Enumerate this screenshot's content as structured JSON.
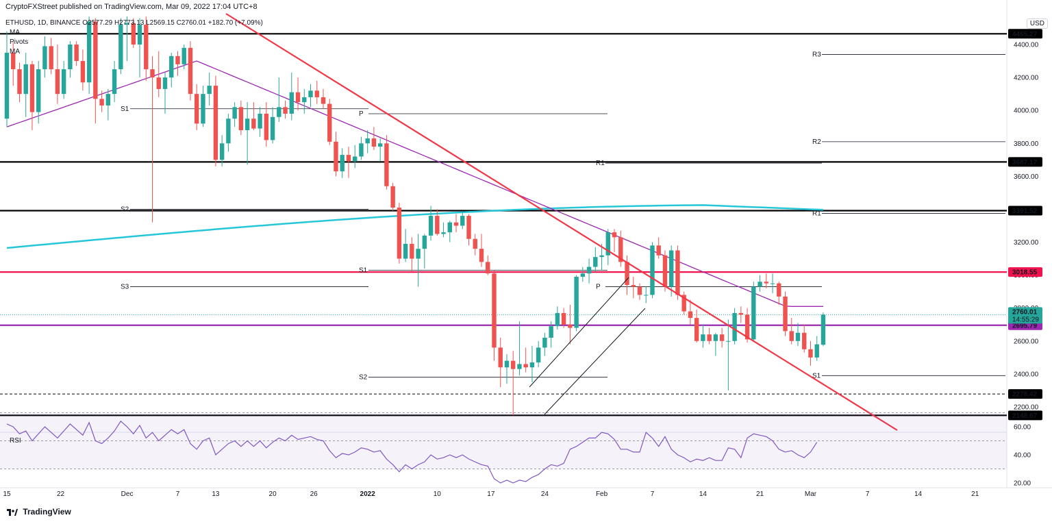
{
  "header": {
    "publisher": "CryptoFXStreet published on TradingView.com, Mar 09, 2022 17:04 UTC+8",
    "symbol_line": "ETHUSD, 1D, BINANCE O2577.29 H2773.13 L2569.15 C2760.01 +182.70 (+7.09%)",
    "change": "+182.70 (+7.09%)"
  },
  "indicators": [
    "MA",
    "Pivots",
    "MA"
  ],
  "currency": "USD",
  "rsi_label": "RSI",
  "footer": {
    "brand": "TradingView"
  },
  "colors": {
    "up": "#26a69a",
    "down": "#ef5350",
    "trendline": "#f23645",
    "ma_short": "#9c27b0",
    "ma_long": "#26c6da",
    "level_red": "#f0134d",
    "level_purple": "#9c27b0",
    "rsi_line": "#7e57c2",
    "last_price": "#26a69a"
  },
  "chart_data": {
    "type": "candlestick",
    "symbol": "ETHUSD",
    "timeframe": "1D",
    "exchange": "BINANCE",
    "ohlc": {
      "open": 2577.29,
      "high": 2773.13,
      "low": 2569.15,
      "close": 2760.01
    },
    "y_range": [
      2000,
      4550
    ],
    "y_ticks": [
      2200,
      2400,
      2600,
      2800,
      3000,
      3200,
      3400,
      3600,
      3800,
      4000,
      4200,
      4400
    ],
    "x_ticks": [
      "15",
      "22",
      "Dec",
      "7",
      "13",
      "20",
      "26",
      "2022",
      "10",
      "17",
      "24",
      "Feb",
      "7",
      "14",
      "21",
      "Mar",
      "7",
      "14",
      "21"
    ],
    "horizontal_levels": [
      {
        "value": 4465.27,
        "label": "4465.27",
        "color": "#000000",
        "style": "solid-thick"
      },
      {
        "value": 3687.17,
        "label": "3687.17",
        "color": "#000000",
        "style": "solid-thick"
      },
      {
        "value": 3391.52,
        "label": "3391.52",
        "color": "#000000",
        "style": "solid-thick"
      },
      {
        "value": 3018.55,
        "label": "3018.55",
        "color": "#f0134d",
        "style": "solid-thick"
      },
      {
        "value": 2695.79,
        "label": "2695.79",
        "color": "#9c27b0",
        "style": "solid-thick"
      },
      {
        "value": 2278.42,
        "label": "2278.42",
        "color": "#000000",
        "style": "dashed"
      },
      {
        "value": 2148.67,
        "label": "2148.67",
        "color": "#000000",
        "style": "solid-thick"
      }
    ],
    "last_price": {
      "value": 2760.01,
      "label": "2760.01",
      "countdown": "14:55:29"
    },
    "pivots": [
      {
        "label": "R3",
        "value": 4340
      },
      {
        "label": "R2",
        "value": 3810
      },
      {
        "label": "R1",
        "value": 3680
      },
      {
        "label": "R1",
        "value": 3375
      },
      {
        "label": "P",
        "value": 3980
      },
      {
        "label": "P",
        "value": 2930
      },
      {
        "label": "S1",
        "value": 4010
      },
      {
        "label": "S1",
        "value": 3030
      },
      {
        "label": "S1",
        "value": 2390
      },
      {
        "label": "S2",
        "value": 3400
      },
      {
        "label": "S2",
        "value": 2380
      },
      {
        "label": "S3",
        "value": 2930
      }
    ],
    "candles": [
      {
        "o": 3950,
        "h": 4480,
        "l": 3900,
        "c": 4350
      },
      {
        "o": 4350,
        "h": 4420,
        "l": 4150,
        "c": 4250
      },
      {
        "o": 4250,
        "h": 4290,
        "l": 4050,
        "c": 4100
      },
      {
        "o": 4100,
        "h": 4350,
        "l": 3960,
        "c": 4280
      },
      {
        "o": 4280,
        "h": 4300,
        "l": 3880,
        "c": 3990
      },
      {
        "o": 3990,
        "h": 4300,
        "l": 3920,
        "c": 4250
      },
      {
        "o": 4250,
        "h": 4450,
        "l": 4200,
        "c": 4390
      },
      {
        "o": 4390,
        "h": 4440,
        "l": 4220,
        "c": 4250
      },
      {
        "o": 4250,
        "h": 4400,
        "l": 4040,
        "c": 4100
      },
      {
        "o": 4100,
        "h": 4300,
        "l": 4070,
        "c": 4250
      },
      {
        "o": 4250,
        "h": 4420,
        "l": 4200,
        "c": 4400
      },
      {
        "o": 4400,
        "h": 4420,
        "l": 4270,
        "c": 4300
      },
      {
        "o": 4300,
        "h": 4370,
        "l": 4120,
        "c": 4170
      },
      {
        "o": 4170,
        "h": 4570,
        "l": 4100,
        "c": 4540
      },
      {
        "o": 4540,
        "h": 4560,
        "l": 3920,
        "c": 4070
      },
      {
        "o": 4070,
        "h": 4120,
        "l": 3990,
        "c": 4030
      },
      {
        "o": 4030,
        "h": 4130,
        "l": 3940,
        "c": 4100
      },
      {
        "o": 4100,
        "h": 4300,
        "l": 4050,
        "c": 4250
      },
      {
        "o": 4250,
        "h": 4560,
        "l": 4220,
        "c": 4520
      },
      {
        "o": 4520,
        "h": 4570,
        "l": 4300,
        "c": 4530
      },
      {
        "o": 4530,
        "h": 4560,
        "l": 4380,
        "c": 4400
      },
      {
        "o": 4400,
        "h": 4560,
        "l": 4200,
        "c": 4520
      },
      {
        "o": 4520,
        "h": 4570,
        "l": 4180,
        "c": 4250
      },
      {
        "o": 4250,
        "h": 4330,
        "l": 3320,
        "c": 4200
      },
      {
        "o": 4200,
        "h": 4360,
        "l": 4080,
        "c": 4130
      },
      {
        "o": 4130,
        "h": 4230,
        "l": 3980,
        "c": 4200
      },
      {
        "o": 4200,
        "h": 4350,
        "l": 4140,
        "c": 4330
      },
      {
        "o": 4330,
        "h": 4360,
        "l": 4210,
        "c": 4280
      },
      {
        "o": 4280,
        "h": 4400,
        "l": 4250,
        "c": 4380
      },
      {
        "o": 4380,
        "h": 4420,
        "l": 4060,
        "c": 4100
      },
      {
        "o": 4100,
        "h": 4160,
        "l": 3880,
        "c": 3920
      },
      {
        "o": 3920,
        "h": 4150,
        "l": 3900,
        "c": 4100
      },
      {
        "o": 4100,
        "h": 4230,
        "l": 4030,
        "c": 4150
      },
      {
        "o": 4150,
        "h": 4210,
        "l": 3660,
        "c": 3700
      },
      {
        "o": 3700,
        "h": 3850,
        "l": 3660,
        "c": 3800
      },
      {
        "o": 3800,
        "h": 3980,
        "l": 3750,
        "c": 3950
      },
      {
        "o": 3950,
        "h": 4050,
        "l": 3900,
        "c": 4020
      },
      {
        "o": 4020,
        "h": 4060,
        "l": 3850,
        "c": 3880
      },
      {
        "o": 3880,
        "h": 4050,
        "l": 3670,
        "c": 3950
      },
      {
        "o": 3950,
        "h": 4050,
        "l": 3880,
        "c": 3890
      },
      {
        "o": 3890,
        "h": 4020,
        "l": 3840,
        "c": 3980
      },
      {
        "o": 3980,
        "h": 4050,
        "l": 3780,
        "c": 3820
      },
      {
        "o": 3820,
        "h": 4020,
        "l": 3800,
        "c": 3960
      },
      {
        "o": 3960,
        "h": 4200,
        "l": 3930,
        "c": 4020
      },
      {
        "o": 4020,
        "h": 4060,
        "l": 3950,
        "c": 3980
      },
      {
        "o": 3980,
        "h": 4230,
        "l": 3940,
        "c": 4110
      },
      {
        "o": 4110,
        "h": 4200,
        "l": 4000,
        "c": 4050
      },
      {
        "o": 4050,
        "h": 4130,
        "l": 3980,
        "c": 4080
      },
      {
        "o": 4080,
        "h": 4160,
        "l": 4020,
        "c": 4120
      },
      {
        "o": 4120,
        "h": 4180,
        "l": 4040,
        "c": 4080
      },
      {
        "o": 4080,
        "h": 4130,
        "l": 4010,
        "c": 4040
      },
      {
        "o": 4040,
        "h": 4070,
        "l": 3790,
        "c": 3810
      },
      {
        "o": 3810,
        "h": 3870,
        "l": 3600,
        "c": 3630
      },
      {
        "o": 3630,
        "h": 3770,
        "l": 3590,
        "c": 3730
      },
      {
        "o": 3730,
        "h": 3780,
        "l": 3590,
        "c": 3690
      },
      {
        "o": 3690,
        "h": 3790,
        "l": 3650,
        "c": 3720
      },
      {
        "o": 3720,
        "h": 3840,
        "l": 3700,
        "c": 3800
      },
      {
        "o": 3800,
        "h": 3880,
        "l": 3740,
        "c": 3830
      },
      {
        "o": 3830,
        "h": 3900,
        "l": 3760,
        "c": 3780
      },
      {
        "o": 3780,
        "h": 3830,
        "l": 3690,
        "c": 3800
      },
      {
        "o": 3800,
        "h": 3850,
        "l": 3520,
        "c": 3540
      },
      {
        "o": 3540,
        "h": 3560,
        "l": 3390,
        "c": 3410
      },
      {
        "o": 3410,
        "h": 3440,
        "l": 3070,
        "c": 3100
      },
      {
        "o": 3100,
        "h": 3280,
        "l": 3080,
        "c": 3190
      },
      {
        "o": 3190,
        "h": 3230,
        "l": 3020,
        "c": 3100
      },
      {
        "o": 3100,
        "h": 3250,
        "l": 2930,
        "c": 3160
      },
      {
        "o": 3160,
        "h": 3250,
        "l": 3040,
        "c": 3240
      },
      {
        "o": 3240,
        "h": 3420,
        "l": 3210,
        "c": 3360
      },
      {
        "o": 3360,
        "h": 3400,
        "l": 3240,
        "c": 3250
      },
      {
        "o": 3250,
        "h": 3320,
        "l": 3230,
        "c": 3260
      },
      {
        "o": 3260,
        "h": 3330,
        "l": 3200,
        "c": 3320
      },
      {
        "o": 3320,
        "h": 3370,
        "l": 3260,
        "c": 3300
      },
      {
        "o": 3300,
        "h": 3380,
        "l": 3280,
        "c": 3360
      },
      {
        "o": 3360,
        "h": 3370,
        "l": 3180,
        "c": 3220
      },
      {
        "o": 3220,
        "h": 3250,
        "l": 3120,
        "c": 3160
      },
      {
        "o": 3160,
        "h": 3250,
        "l": 3050,
        "c": 3080
      },
      {
        "o": 3080,
        "h": 3120,
        "l": 3000,
        "c": 3010
      },
      {
        "o": 3010,
        "h": 3030,
        "l": 2480,
        "c": 2560
      },
      {
        "o": 2560,
        "h": 2620,
        "l": 2320,
        "c": 2440
      },
      {
        "o": 2440,
        "h": 2520,
        "l": 2340,
        "c": 2480
      },
      {
        "o": 2480,
        "h": 2540,
        "l": 2150,
        "c": 2430
      },
      {
        "o": 2430,
        "h": 2720,
        "l": 2390,
        "c": 2460
      },
      {
        "o": 2460,
        "h": 2560,
        "l": 2410,
        "c": 2440
      },
      {
        "o": 2440,
        "h": 2570,
        "l": 2350,
        "c": 2470
      },
      {
        "o": 2470,
        "h": 2600,
        "l": 2440,
        "c": 2560
      },
      {
        "o": 2560,
        "h": 2650,
        "l": 2510,
        "c": 2620
      },
      {
        "o": 2620,
        "h": 2720,
        "l": 2560,
        "c": 2690
      },
      {
        "o": 2690,
        "h": 2810,
        "l": 2670,
        "c": 2770
      },
      {
        "o": 2770,
        "h": 2800,
        "l": 2680,
        "c": 2700
      },
      {
        "o": 2700,
        "h": 2820,
        "l": 2580,
        "c": 2680
      },
      {
        "o": 2680,
        "h": 3000,
        "l": 2660,
        "c": 2990
      },
      {
        "o": 2990,
        "h": 3050,
        "l": 2960,
        "c": 3010
      },
      {
        "o": 3010,
        "h": 3100,
        "l": 2950,
        "c": 3050
      },
      {
        "o": 3050,
        "h": 3170,
        "l": 3020,
        "c": 3110
      },
      {
        "o": 3110,
        "h": 3190,
        "l": 3030,
        "c": 3120
      },
      {
        "o": 3120,
        "h": 3280,
        "l": 3060,
        "c": 3260
      },
      {
        "o": 3260,
        "h": 3280,
        "l": 3140,
        "c": 3230
      },
      {
        "o": 3230,
        "h": 3270,
        "l": 3050,
        "c": 3080
      },
      {
        "o": 3080,
        "h": 3120,
        "l": 2880,
        "c": 2940
      },
      {
        "o": 2940,
        "h": 2990,
        "l": 2860,
        "c": 2930
      },
      {
        "o": 2930,
        "h": 2950,
        "l": 2850,
        "c": 2880
      },
      {
        "o": 2880,
        "h": 2930,
        "l": 2830,
        "c": 2880
      },
      {
        "o": 2880,
        "h": 3200,
        "l": 2860,
        "c": 3180
      },
      {
        "o": 3180,
        "h": 3230,
        "l": 3100,
        "c": 3120
      },
      {
        "o": 3120,
        "h": 3150,
        "l": 2900,
        "c": 2930
      },
      {
        "o": 2930,
        "h": 3180,
        "l": 2870,
        "c": 3150
      },
      {
        "o": 3150,
        "h": 3180,
        "l": 2850,
        "c": 2880
      },
      {
        "o": 2880,
        "h": 2900,
        "l": 2760,
        "c": 2780
      },
      {
        "o": 2780,
        "h": 2850,
        "l": 2700,
        "c": 2740
      },
      {
        "o": 2740,
        "h": 2790,
        "l": 2590,
        "c": 2600
      },
      {
        "o": 2600,
        "h": 2700,
        "l": 2560,
        "c": 2640
      },
      {
        "o": 2640,
        "h": 2680,
        "l": 2580,
        "c": 2600
      },
      {
        "o": 2600,
        "h": 2650,
        "l": 2510,
        "c": 2640
      },
      {
        "o": 2640,
        "h": 2680,
        "l": 2560,
        "c": 2600
      },
      {
        "o": 2600,
        "h": 2730,
        "l": 2300,
        "c": 2600
      },
      {
        "o": 2600,
        "h": 2800,
        "l": 2580,
        "c": 2770
      },
      {
        "o": 2770,
        "h": 2810,
        "l": 2710,
        "c": 2760
      },
      {
        "o": 2760,
        "h": 2800,
        "l": 2590,
        "c": 2610
      },
      {
        "o": 2610,
        "h": 2960,
        "l": 2600,
        "c": 2930
      },
      {
        "o": 2930,
        "h": 3000,
        "l": 2900,
        "c": 2960
      },
      {
        "o": 2960,
        "h": 3010,
        "l": 2920,
        "c": 2950
      },
      {
        "o": 2950,
        "h": 3010,
        "l": 2890,
        "c": 2950
      },
      {
        "o": 2950,
        "h": 2960,
        "l": 2820,
        "c": 2870
      },
      {
        "o": 2870,
        "h": 2900,
        "l": 2630,
        "c": 2660
      },
      {
        "o": 2660,
        "h": 2740,
        "l": 2580,
        "c": 2600
      },
      {
        "o": 2600,
        "h": 2710,
        "l": 2570,
        "c": 2650
      },
      {
        "o": 2650,
        "h": 2700,
        "l": 2530,
        "c": 2550
      },
      {
        "o": 2550,
        "h": 2600,
        "l": 2450,
        "c": 2500
      },
      {
        "o": 2500,
        "h": 2630,
        "l": 2480,
        "c": 2580
      },
      {
        "o": 2577.29,
        "h": 2773.13,
        "l": 2569.15,
        "c": 2760.01
      }
    ],
    "rsi": {
      "overbought": 70,
      "midline": 50,
      "oversold": 30,
      "y_ticks": [
        20,
        40,
        60
      ],
      "values": [
        62,
        60,
        55,
        57,
        50,
        55,
        60,
        56,
        52,
        57,
        62,
        58,
        54,
        63,
        50,
        48,
        52,
        57,
        64,
        60,
        55,
        61,
        52,
        56,
        50,
        54,
        58,
        55,
        58,
        48,
        44,
        50,
        52,
        40,
        44,
        48,
        50,
        46,
        50,
        46,
        50,
        45,
        49,
        52,
        50,
        54,
        51,
        52,
        53,
        51,
        50,
        43,
        38,
        41,
        40,
        42,
        45,
        44,
        42,
        43,
        37,
        33,
        28,
        33,
        30,
        33,
        35,
        40,
        37,
        38,
        40,
        38,
        40,
        37,
        35,
        33,
        32,
        23,
        20,
        22,
        20,
        22,
        21,
        24,
        26,
        30,
        33,
        32,
        34,
        44,
        46,
        49,
        52,
        52,
        56,
        55,
        51,
        44,
        44,
        42,
        42,
        56,
        52,
        46,
        53,
        44,
        40,
        38,
        35,
        37,
        36,
        38,
        36,
        36,
        45,
        44,
        38,
        52,
        55,
        54,
        53,
        50,
        44,
        42,
        43,
        40,
        38,
        42,
        49
      ]
    }
  }
}
